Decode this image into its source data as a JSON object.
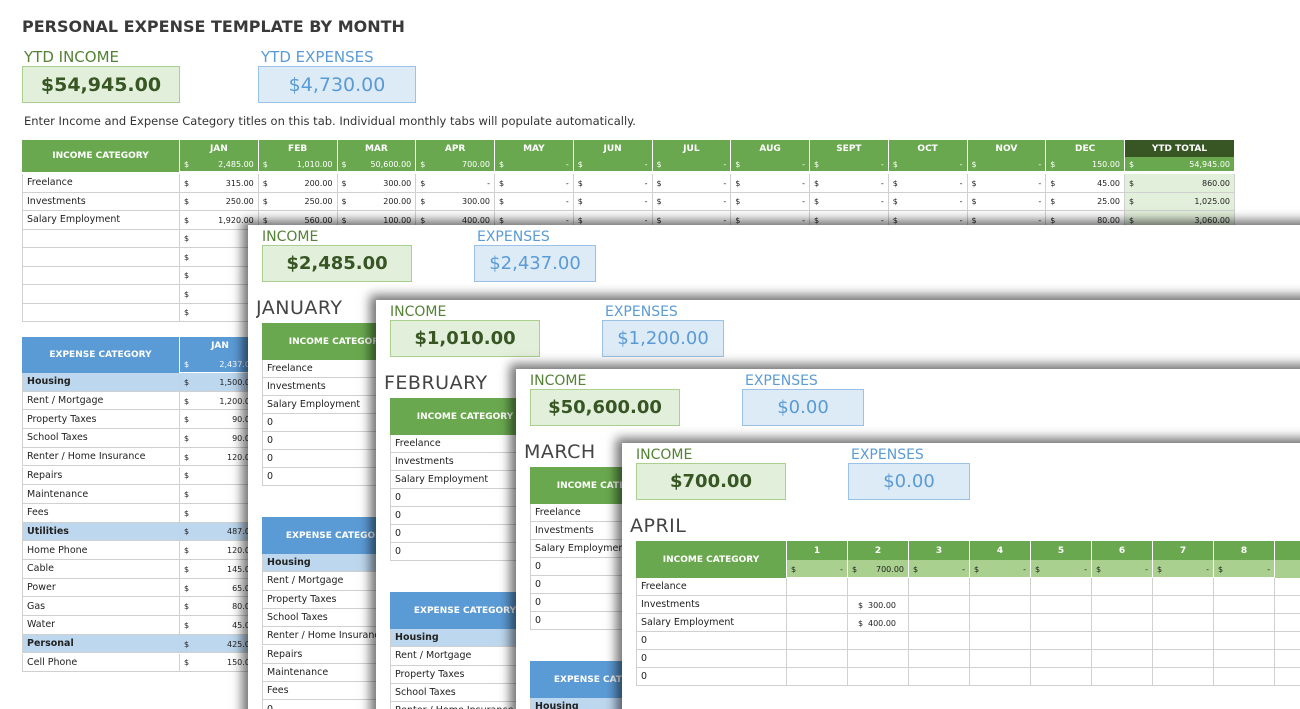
{
  "currency": "$",
  "header": {
    "title": "PERSONAL EXPENSE TEMPLATE BY MONTH",
    "ytd_income_label": "YTD INCOME",
    "ytd_income": "$54,945.00",
    "ytd_expenses_label": "YTD EXPENSES",
    "ytd_expenses": "$4,730.00",
    "note": "Enter Income and Expense Category titles on this tab.  Individual monthly tabs will populate automatically."
  },
  "income_table": {
    "header": "INCOME CATEGORY",
    "columns": [
      "JAN",
      "FEB",
      "MAR",
      "APR",
      "MAY",
      "JUN",
      "JUL",
      "AUG",
      "SEPT",
      "OCT",
      "NOV",
      "DEC",
      "YTD TOTAL"
    ],
    "totals": [
      "2,485.00",
      "1,010.00",
      "50,600.00",
      "700.00",
      "-",
      "-",
      "-",
      "-",
      "-",
      "-",
      "-",
      "150.00",
      "54,945.00"
    ],
    "rows": [
      {
        "label": "Freelance",
        "values": [
          "315.00",
          "200.00",
          "300.00",
          "-",
          "-",
          "-",
          "-",
          "-",
          "-",
          "-",
          "-",
          "45.00",
          "860.00"
        ]
      },
      {
        "label": "Investments",
        "values": [
          "250.00",
          "250.00",
          "200.00",
          "300.00",
          "-",
          "-",
          "-",
          "-",
          "-",
          "-",
          "-",
          "25.00",
          "1,025.00"
        ]
      },
      {
        "label": "Salary Employment",
        "values": [
          "1,920.00",
          "560.00",
          "100.00",
          "400.00",
          "-",
          "-",
          "-",
          "-",
          "-",
          "-",
          "-",
          "80.00",
          "3,060.00"
        ]
      }
    ]
  },
  "expense_table": {
    "header": "EXPENSE CATEGORY",
    "column": "JAN",
    "total": "2,437.00",
    "rows": [
      {
        "label": "Housing",
        "value": "1,500.00",
        "group": true
      },
      {
        "label": "Rent / Mortgage",
        "value": "1,200.00"
      },
      {
        "label": "Property Taxes",
        "value": "90.00"
      },
      {
        "label": "School Taxes",
        "value": "90.00"
      },
      {
        "label": "Renter / Home Insurance",
        "value": "120.00"
      },
      {
        "label": "Repairs"
      },
      {
        "label": "Maintenance"
      },
      {
        "label": "Fees"
      },
      {
        "label": "Utilities",
        "value": "487.00",
        "group": true
      },
      {
        "label": "Home Phone",
        "value": "120.00"
      },
      {
        "label": "Cable",
        "value": "145.00"
      },
      {
        "label": "Power",
        "value": "65.00"
      },
      {
        "label": "Gas",
        "value": "80.00"
      },
      {
        "label": "Water",
        "value": "45.00"
      },
      {
        "label": "Personal",
        "value": "425.00",
        "group": true
      },
      {
        "label": "Cell Phone",
        "value": "150.00"
      }
    ]
  },
  "sheets": [
    {
      "title": "JANUARY",
      "income_label": "INCOME",
      "income": "$2,485.00",
      "expenses_label": "EXPENSES",
      "expenses": "$2,437.00",
      "income_header": "INCOME CATEGORY",
      "income_rows": [
        "Freelance",
        "Investments",
        "Salary Employment",
        "0",
        "0",
        "0",
        "0"
      ],
      "expense_header": "EXPENSE CATEGORY",
      "expense_rows": [
        "Housing",
        "Rent / Mortgage",
        "Property Taxes",
        "School Taxes",
        "Renter / Home Insurance",
        "Repairs",
        "Maintenance",
        "Fees",
        "0"
      ]
    },
    {
      "title": "FEBRUARY",
      "income_label": "INCOME",
      "income": "$1,010.00",
      "expenses_label": "EXPENSES",
      "expenses": "$1,200.00",
      "income_header": "INCOME CATEGORY",
      "income_rows": [
        "Freelance",
        "Investments",
        "Salary Employment",
        "0",
        "0",
        "0",
        "0"
      ],
      "expense_header": "EXPENSE CATEGORY",
      "expense_rows": [
        "Housing",
        "Rent / Mortgage",
        "Property Taxes",
        "School Taxes",
        "Renter / Home Insurance"
      ]
    },
    {
      "title": "MARCH",
      "income_label": "INCOME",
      "income": "$50,600.00",
      "expenses_label": "EXPENSES",
      "expenses": "$0.00",
      "income_header": "INCOME CATEGORY",
      "income_rows": [
        "Freelance",
        "Investments",
        "Salary Employment",
        "0",
        "0",
        "0",
        "0"
      ],
      "expense_header": "EXPENSE CATEGORY",
      "expense_rows": [
        "Housing"
      ]
    },
    {
      "title": "APRIL",
      "income_label": "INCOME",
      "income": "$700.00",
      "expenses_label": "EXPENSES",
      "expenses": "$0.00",
      "income_header": "INCOME CATEGORY",
      "income_rows": [
        "Freelance",
        "Investments",
        "Salary Employment",
        "0",
        "0",
        "0"
      ],
      "days": [
        "1",
        "2",
        "3",
        "4",
        "5",
        "6",
        "7",
        "8"
      ],
      "day_totals": [
        "-",
        "700.00",
        "-",
        "-",
        "-",
        "-",
        "-",
        "-"
      ],
      "day_values": [
        [
          null,
          null,
          null,
          null,
          null,
          null,
          null,
          null
        ],
        [
          null,
          "300.00",
          null,
          null,
          null,
          null,
          null,
          null
        ],
        [
          null,
          "400.00",
          null,
          null,
          null,
          null,
          null,
          null
        ]
      ]
    }
  ]
}
